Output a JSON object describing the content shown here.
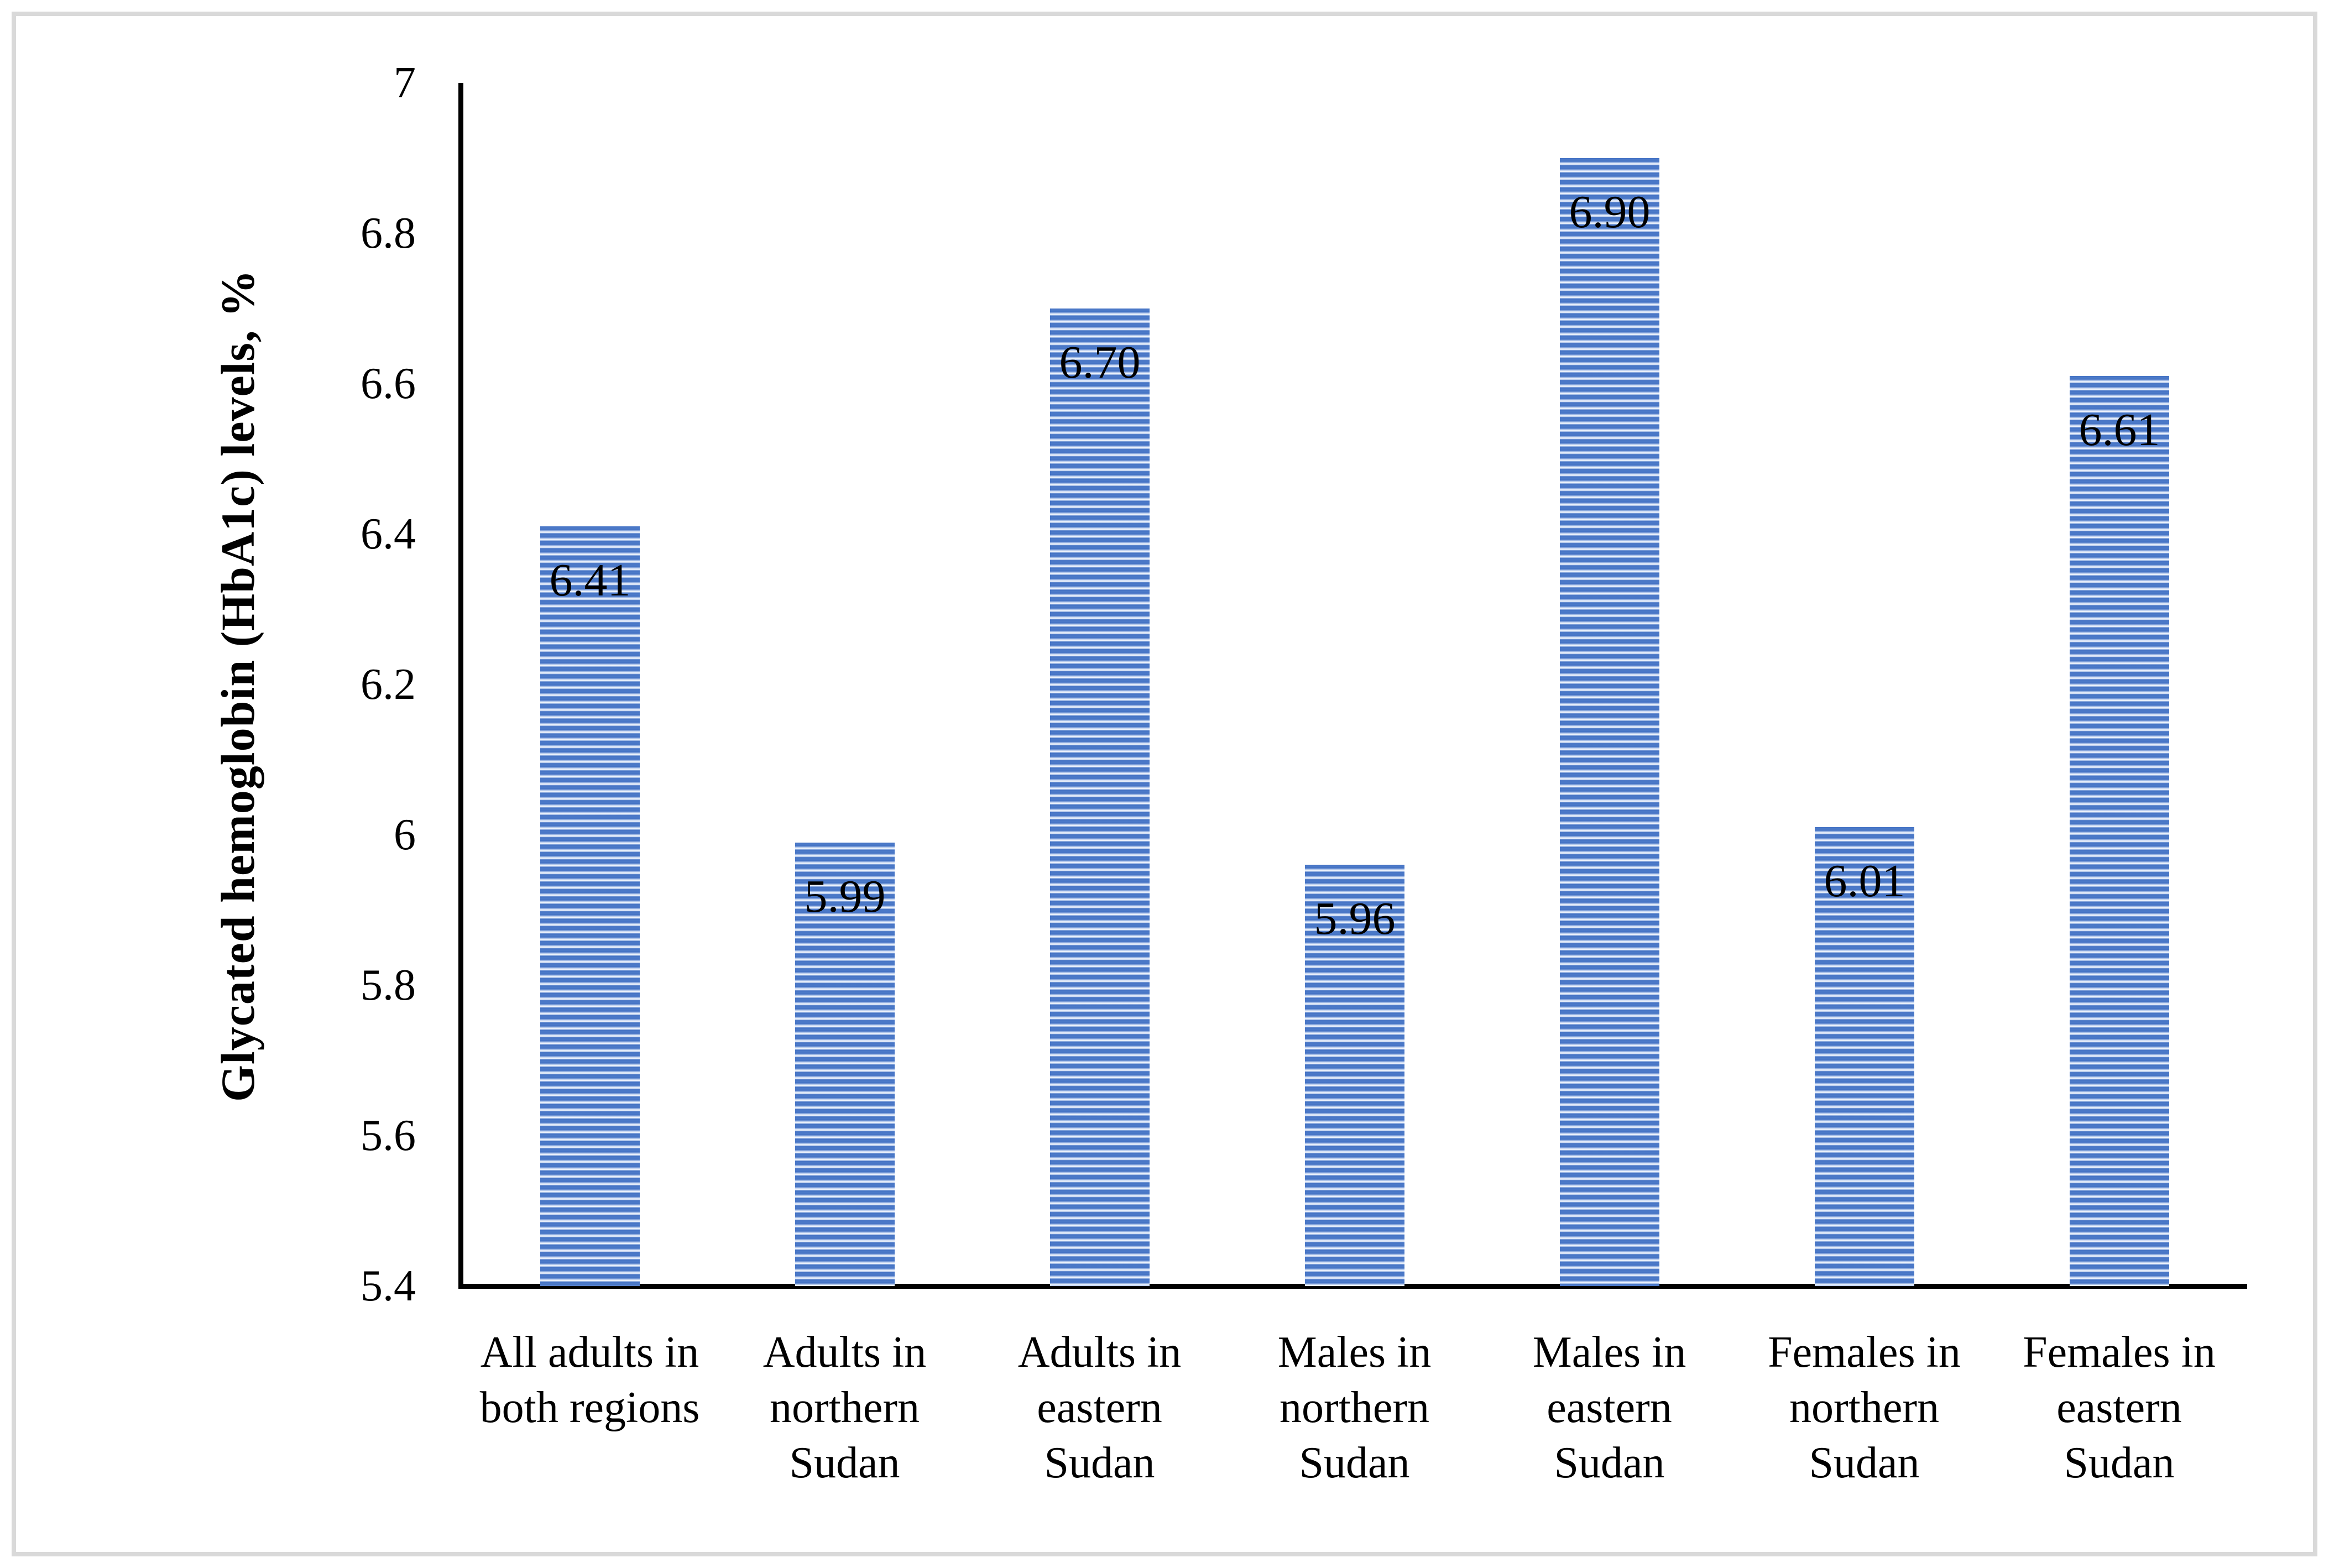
{
  "frame": {
    "border_color": "#d9d9d9"
  },
  "chart_data": {
    "type": "bar",
    "title": "",
    "xlabel": "",
    "ylabel": "Glycated hemoglobin (HbA1c) levels, %",
    "ylim": [
      5.4,
      7.0
    ],
    "ytick_labels": [
      "7",
      "6.8",
      "6.6",
      "6.4",
      "6.2",
      "6",
      "5.8",
      "5.6",
      "5.4"
    ],
    "grid": false,
    "legend_position": "none",
    "categories": [
      "All adults in both regions",
      "Adults in northern Sudan",
      "Adults in eastern Sudan",
      "Males in northern Sudan",
      "Males in eastern Sudan",
      "Females in northern Sudan",
      "Females in eastern Sudan"
    ],
    "category_lines": [
      [
        "All adults in",
        "both regions"
      ],
      [
        "Adults in",
        "northern",
        "Sudan"
      ],
      [
        "Adults in",
        "eastern",
        "Sudan"
      ],
      [
        "Males in",
        "northern",
        "Sudan"
      ],
      [
        "Males in",
        "eastern",
        "Sudan"
      ],
      [
        "Females in",
        "northern",
        "Sudan"
      ],
      [
        "Females in",
        "eastern",
        "Sudan"
      ]
    ],
    "values": [
      6.41,
      5.99,
      6.7,
      5.96,
      6.9,
      6.01,
      6.61
    ],
    "data_labels": [
      "6.41",
      "5.99",
      "6.70",
      "5.96",
      "6.90",
      "6.01",
      "6.61"
    ],
    "data_label_position": "inside-end",
    "colors": {
      "bar_stripe_dark": "#4472c4",
      "bar_stripe_light": "#e6edfa",
      "axis": "#000000",
      "text": "#000000"
    }
  }
}
